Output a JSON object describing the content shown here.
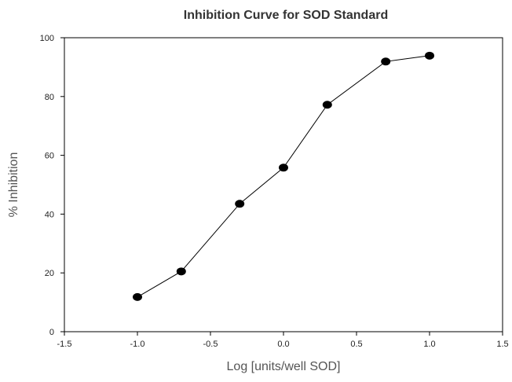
{
  "chart_data": {
    "type": "line",
    "title": "Inhibition Curve for SOD Standard",
    "xlabel": "Log [units/well SOD]",
    "ylabel": "% Inhibition",
    "xlim": [
      -1.5,
      1.5
    ],
    "ylim": [
      0,
      100
    ],
    "x_ticks": [
      -1.5,
      -1.0,
      -0.5,
      0.0,
      0.5,
      1.0,
      1.5
    ],
    "x_tick_labels": [
      "-1.5",
      "-1.0",
      "-0.5",
      "0.0",
      "0.5",
      "1.0",
      "1.5"
    ],
    "y_ticks": [
      0,
      20,
      40,
      60,
      80,
      100
    ],
    "y_tick_labels": [
      "0",
      "20",
      "40",
      "60",
      "80",
      "100"
    ],
    "grid": false,
    "legend": "none",
    "series": [
      {
        "x": [
          -1.0,
          -0.7,
          -0.3,
          0.0,
          0.3,
          0.7,
          1.0
        ],
        "y": [
          11.8,
          20.5,
          43.5,
          55.8,
          77.2,
          91.9,
          93.9
        ],
        "color": "#000000",
        "marker": "circle"
      }
    ]
  }
}
